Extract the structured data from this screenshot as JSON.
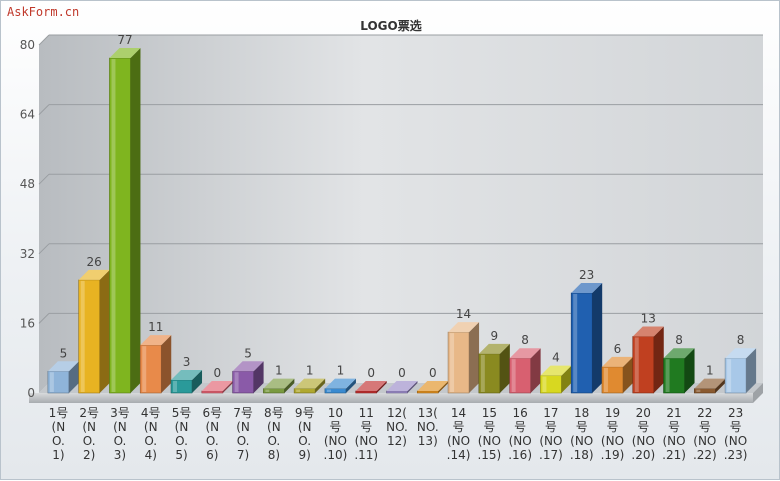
{
  "watermark": "AskForm.cn",
  "chart_data": {
    "type": "bar",
    "title": "LOGO票选",
    "ylim": [
      0,
      80
    ],
    "yticks": [
      0,
      16,
      32,
      48,
      64,
      80
    ],
    "grid": true,
    "categories": [
      [
        "1号",
        "(N",
        "O.",
        "1)"
      ],
      [
        "2号",
        "(N",
        "O.",
        "2)"
      ],
      [
        "3号",
        "(N",
        "O.",
        "3)"
      ],
      [
        "4号",
        "(N",
        "O.",
        "4)"
      ],
      [
        "5号",
        "(N",
        "O.",
        "5)"
      ],
      [
        "6号",
        "(N",
        "O.",
        "6)"
      ],
      [
        "7号",
        "(N",
        "O.",
        "7)"
      ],
      [
        "8号",
        "(N",
        "O.",
        "8)"
      ],
      [
        "9号",
        "(N",
        "O.",
        "9)"
      ],
      [
        "10",
        "号",
        "(NO",
        ".10)"
      ],
      [
        "11",
        "号",
        "(NO",
        ".11)"
      ],
      [
        "12(",
        "NO.",
        "12)"
      ],
      [
        "13(",
        "NO.",
        "13)"
      ],
      [
        "14",
        "号",
        "(NO",
        ".14)"
      ],
      [
        "15",
        "号",
        "(NO",
        ".15)"
      ],
      [
        "16",
        "号",
        "(NO",
        ".16)"
      ],
      [
        "17",
        "号",
        "(NO",
        ".17)"
      ],
      [
        "18",
        "号",
        "(NO",
        ".18)"
      ],
      [
        "19",
        "号",
        "(NO",
        ".19)"
      ],
      [
        "20",
        "号",
        "(NO",
        ".20)"
      ],
      [
        "21",
        "号",
        "(NO",
        ".21)"
      ],
      [
        "22",
        "号",
        "(NO",
        ".22)"
      ],
      [
        "23",
        "号",
        "(NO",
        ".23)"
      ]
    ],
    "values": [
      5,
      26,
      77,
      11,
      3,
      0,
      5,
      1,
      1,
      1,
      0,
      0,
      0,
      14,
      9,
      8,
      4,
      23,
      6,
      13,
      8,
      1,
      8
    ],
    "colors": [
      "#8fb4d9",
      "#e8b322",
      "#7fb51f",
      "#e88a4a",
      "#2a9a9a",
      "#e06070",
      "#8a5aa8",
      "#7a9a40",
      "#b0a830",
      "#3a8ad0",
      "#c03030",
      "#9a8ac8",
      "#e09020",
      "#e8b888",
      "#8a8a20",
      "#d86070",
      "#d8d820",
      "#2060b0",
      "#e08a30",
      "#c04020",
      "#207a20",
      "#8a5a30",
      "#a8c8e8"
    ]
  }
}
